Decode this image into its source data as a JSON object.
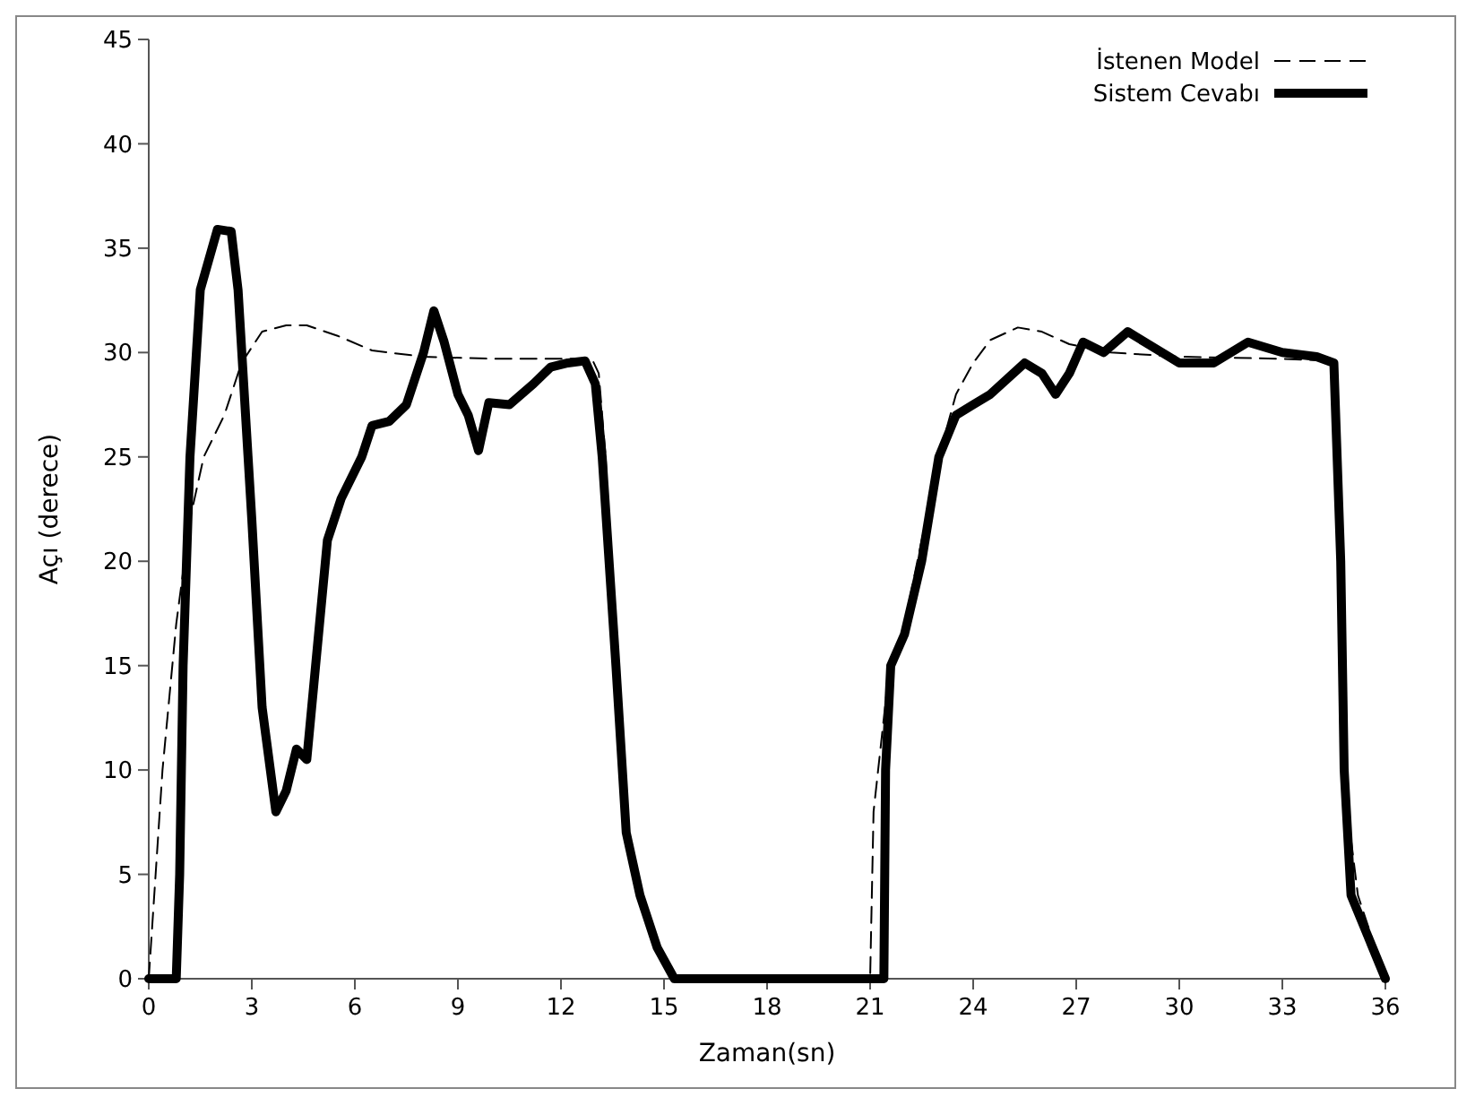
{
  "chart_data": {
    "type": "line",
    "xlabel": "Zaman(sn)",
    "ylabel": "Açı (derece)",
    "xlim": [
      0,
      36
    ],
    "ylim": [
      0,
      45
    ],
    "xticks": [
      0,
      3,
      6,
      9,
      12,
      15,
      18,
      21,
      24,
      27,
      30,
      33,
      36
    ],
    "yticks": [
      0,
      5,
      10,
      15,
      20,
      25,
      30,
      35,
      40,
      45
    ],
    "grid": false,
    "legend": "top right",
    "series": [
      {
        "name": "İstenen Model",
        "color": "#000000",
        "line_style": "dashed",
        "x": [
          0,
          0.2,
          0.4,
          0.8,
          1.2,
          1.6,
          2.2,
          2.7,
          3.3,
          4.0,
          4.6,
          5.5,
          6.5,
          8,
          10,
          12,
          12.9,
          13.1,
          13.3,
          13.6,
          14,
          14.5,
          15.3,
          21,
          21.1,
          21.5,
          22,
          22.5,
          23,
          23.5,
          24,
          24.5,
          25.3,
          26,
          26.8,
          28,
          30,
          33,
          34.5,
          34.7,
          34.9,
          35.2,
          35.6,
          36
        ],
        "values": [
          0,
          5,
          10,
          17,
          22,
          25,
          27,
          29.5,
          31,
          31.3,
          31.3,
          30.8,
          30.1,
          29.8,
          29.7,
          29.7,
          29.7,
          29,
          25,
          15,
          6,
          3,
          0,
          0,
          8,
          14,
          17,
          21,
          25,
          28,
          29.5,
          30.6,
          31.2,
          31,
          30.4,
          30,
          29.8,
          29.7,
          29.6,
          20,
          8,
          4,
          2,
          0
        ]
      },
      {
        "name": "Sistem Cevabı",
        "color": "#000000",
        "line_style": "solid",
        "x": [
          0,
          0.8,
          0.9,
          1.0,
          1.2,
          1.5,
          2.0,
          2.4,
          2.6,
          3.0,
          3.3,
          3.7,
          4.0,
          4.3,
          4.6,
          4.8,
          5.2,
          5.6,
          6.2,
          6.5,
          7.0,
          7.5,
          8.0,
          8.3,
          8.6,
          9.0,
          9.3,
          9.6,
          9.9,
          10.5,
          11.2,
          11.7,
          12.2,
          12.7,
          13.0,
          13.2,
          13.6,
          13.9,
          14.3,
          14.8,
          15.3,
          21.4,
          21.45,
          21.6,
          22,
          22.5,
          23,
          23.5,
          24,
          24.5,
          25.5,
          26,
          26.4,
          26.8,
          27.2,
          27.8,
          28.5,
          29,
          30,
          31,
          32,
          33,
          34,
          34.5,
          34.7,
          34.8,
          35,
          35.5,
          36
        ],
        "values": [
          0,
          0,
          5,
          15,
          25,
          33,
          35.9,
          35.8,
          33,
          22,
          13,
          8,
          9,
          11,
          10.5,
          14,
          21,
          23,
          25,
          26.5,
          26.7,
          27.5,
          30,
          32,
          30.5,
          28,
          27,
          25.3,
          27.6,
          27.5,
          28.5,
          29.3,
          29.5,
          29.6,
          28.5,
          25,
          15,
          7,
          4,
          1.5,
          0,
          0,
          10,
          15,
          16.5,
          20,
          25,
          27,
          27.5,
          28,
          29.5,
          29,
          28,
          29,
          30.5,
          30,
          31,
          30.5,
          29.5,
          29.5,
          30.5,
          30,
          29.8,
          29.5,
          20,
          10,
          4,
          2,
          0
        ]
      }
    ]
  }
}
